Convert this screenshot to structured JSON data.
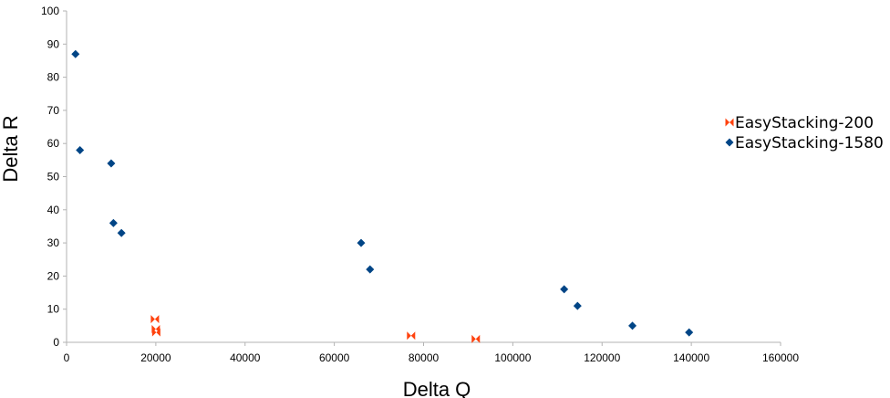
{
  "chart_data": {
    "type": "scatter",
    "xlabel": "Delta Q",
    "ylabel": "Delta R",
    "xlim": [
      0,
      160000
    ],
    "ylim": [
      0,
      100
    ],
    "xticks": [
      0,
      20000,
      40000,
      60000,
      80000,
      100000,
      120000,
      140000,
      160000
    ],
    "yticks": [
      0,
      10,
      20,
      30,
      40,
      50,
      60,
      70,
      80,
      90,
      100
    ],
    "grid": false,
    "legend_position": "right",
    "series": [
      {
        "name": "EasyStacking-200",
        "color": "#ff420e",
        "marker": "bowtie",
        "points": [
          {
            "x": 19800,
            "y": 7
          },
          {
            "x": 20000,
            "y": 4
          },
          {
            "x": 20100,
            "y": 3
          },
          {
            "x": 77200,
            "y": 2
          },
          {
            "x": 91700,
            "y": 1
          }
        ]
      },
      {
        "name": "EasyStacking-1580",
        "color": "#004586",
        "marker": "diamond",
        "points": [
          {
            "x": 2000,
            "y": 87
          },
          {
            "x": 3000,
            "y": 58
          },
          {
            "x": 10000,
            "y": 54
          },
          {
            "x": 10500,
            "y": 36
          },
          {
            "x": 12300,
            "y": 33
          },
          {
            "x": 66000,
            "y": 30
          },
          {
            "x": 68000,
            "y": 22
          },
          {
            "x": 111500,
            "y": 16
          },
          {
            "x": 114500,
            "y": 11
          },
          {
            "x": 126800,
            "y": 5
          },
          {
            "x": 139500,
            "y": 3
          }
        ]
      }
    ]
  }
}
